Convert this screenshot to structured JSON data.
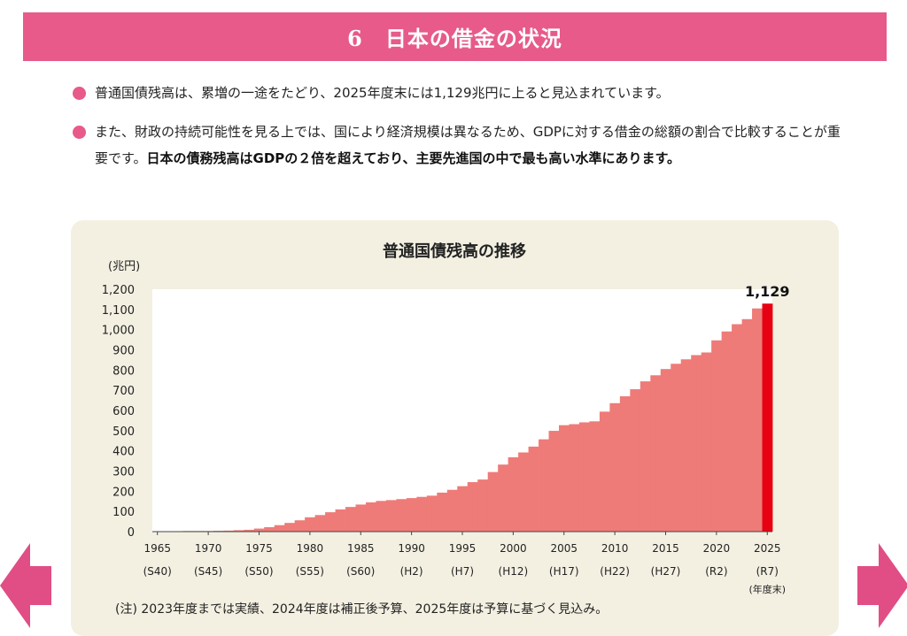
{
  "header": {
    "title": "6　日本の借金の状況"
  },
  "bullets": [
    {
      "text": "普通国債残高は、累増の一途をたどり、2025年度末には1,129兆円に上ると見込まれています。",
      "bold": ""
    },
    {
      "text": "また、財政の持続可能性を見る上では、国により経済規模は異なるため、GDPに対する借金の総額の割合で比較することが重要です。",
      "bold": "日本の債務残高はGDPの２倍を超えており、主要先進国の中で最も高い水準にあります。"
    }
  ],
  "footnote": "(注) 2023年度までは実績、2024年度は補正後予算、2025年度は予算に基づく見込み。",
  "navigation": {
    "prev_icon": "arrow-left-icon",
    "next_icon": "arrow-right-icon"
  },
  "colors": {
    "header": "#e75a8a",
    "bars": "#ee7b78",
    "highlight": "#e60012",
    "panel": "#f3f0e2"
  },
  "chart_data": {
    "type": "bar",
    "title": "普通国債残高の推移",
    "ylabel": "(兆円)",
    "xlabel": "(年度末)",
    "ylim": [
      0,
      1200
    ],
    "yticks": [
      "0",
      "100",
      "200",
      "300",
      "400",
      "500",
      "600",
      "700",
      "800",
      "900",
      "1,000",
      "1,100",
      "1,200"
    ],
    "xtick_years": [
      "1965",
      "1970",
      "1975",
      "1980",
      "1985",
      "1990",
      "1995",
      "2000",
      "2005",
      "2010",
      "2015",
      "2020",
      "2025"
    ],
    "xtick_eras": [
      "(S40)",
      "(S45)",
      "(S50)",
      "(S55)",
      "(S60)",
      "(H2)",
      "(H7)",
      "(H12)",
      "(H17)",
      "(H22)",
      "(H27)",
      "(R2)",
      "(R7)"
    ],
    "highlight_label": "1,129",
    "grid": false,
    "categories": [
      1965,
      1966,
      1967,
      1968,
      1969,
      1970,
      1971,
      1972,
      1973,
      1974,
      1975,
      1976,
      1977,
      1978,
      1979,
      1980,
      1981,
      1982,
      1983,
      1984,
      1985,
      1986,
      1987,
      1988,
      1989,
      1990,
      1991,
      1992,
      1993,
      1994,
      1995,
      1996,
      1997,
      1998,
      1999,
      2000,
      2001,
      2002,
      2003,
      2004,
      2005,
      2006,
      2007,
      2008,
      2009,
      2010,
      2011,
      2012,
      2013,
      2014,
      2015,
      2016,
      2017,
      2018,
      2019,
      2020,
      2021,
      2022,
      2023,
      2024,
      2025
    ],
    "values": [
      0,
      1,
      2,
      3,
      3,
      3,
      4,
      5,
      7,
      9,
      15,
      22,
      32,
      43,
      56,
      71,
      82,
      96,
      110,
      122,
      134,
      145,
      152,
      156,
      161,
      166,
      172,
      178,
      193,
      207,
      225,
      245,
      258,
      295,
      332,
      368,
      392,
      421,
      457,
      499,
      527,
      532,
      541,
      546,
      594,
      636,
      670,
      705,
      744,
      774,
      805,
      831,
      853,
      874,
      887,
      947,
      991,
      1027,
      1052,
      1105,
      1129
    ]
  }
}
